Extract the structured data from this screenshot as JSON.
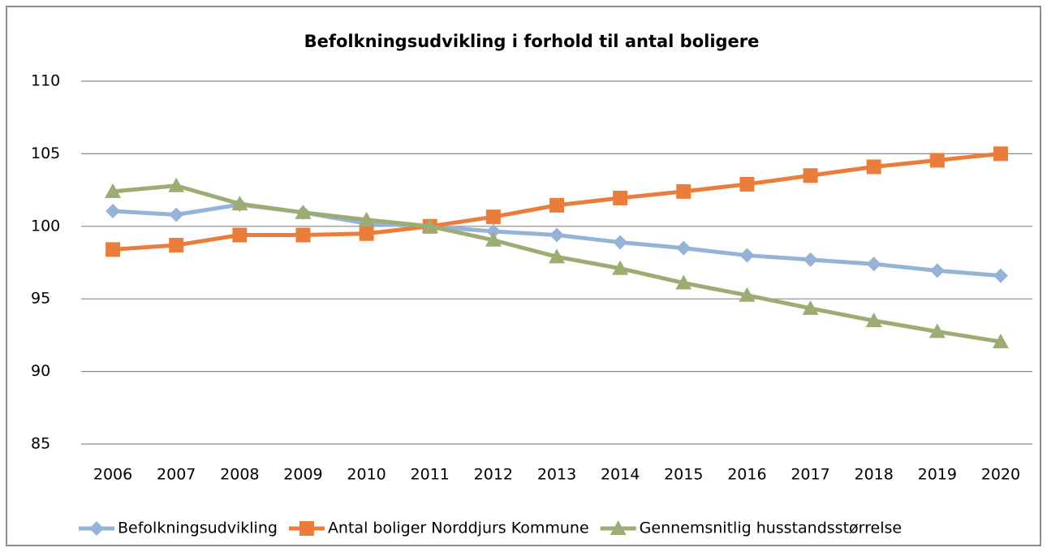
{
  "chart_data": {
    "type": "line",
    "title": "Befolkningsudvikling i forhold til antal boligere",
    "categories": [
      "2006",
      "2007",
      "2008",
      "2009",
      "2010",
      "2011",
      "2012",
      "2013",
      "2014",
      "2015",
      "2016",
      "2017",
      "2018",
      "2019",
      "2020"
    ],
    "series": [
      {
        "name": "Befolkningsudvikling",
        "color": "#95b3d7",
        "marker": "diamond",
        "values": [
          101.05,
          100.8,
          101.5,
          100.95,
          100.2,
          100,
          99.65,
          99.4,
          98.9,
          98.5,
          98.0,
          97.7,
          97.4,
          96.95,
          96.6
        ]
      },
      {
        "name": "Antal boliger Norddjurs Kommune",
        "color": "#eb7d3c",
        "marker": "square",
        "values": [
          98.4,
          98.7,
          99.4,
          99.4,
          99.5,
          100,
          100.65,
          101.45,
          101.95,
          102.4,
          102.9,
          103.5,
          104.1,
          104.55,
          105.0
        ]
      },
      {
        "name": "Gennemsnitlig husstandsstørrelse",
        "color": "#9cac72",
        "marker": "triangle",
        "values": [
          102.4,
          102.8,
          101.55,
          100.95,
          100.45,
          100,
          99.05,
          97.9,
          97.1,
          96.1,
          95.25,
          94.35,
          93.5,
          92.75,
          92.05
        ]
      }
    ],
    "ylim": [
      85,
      110
    ],
    "yticks": [
      85,
      90,
      95,
      100,
      105,
      110
    ],
    "grid": true,
    "legend": "bottom"
  }
}
